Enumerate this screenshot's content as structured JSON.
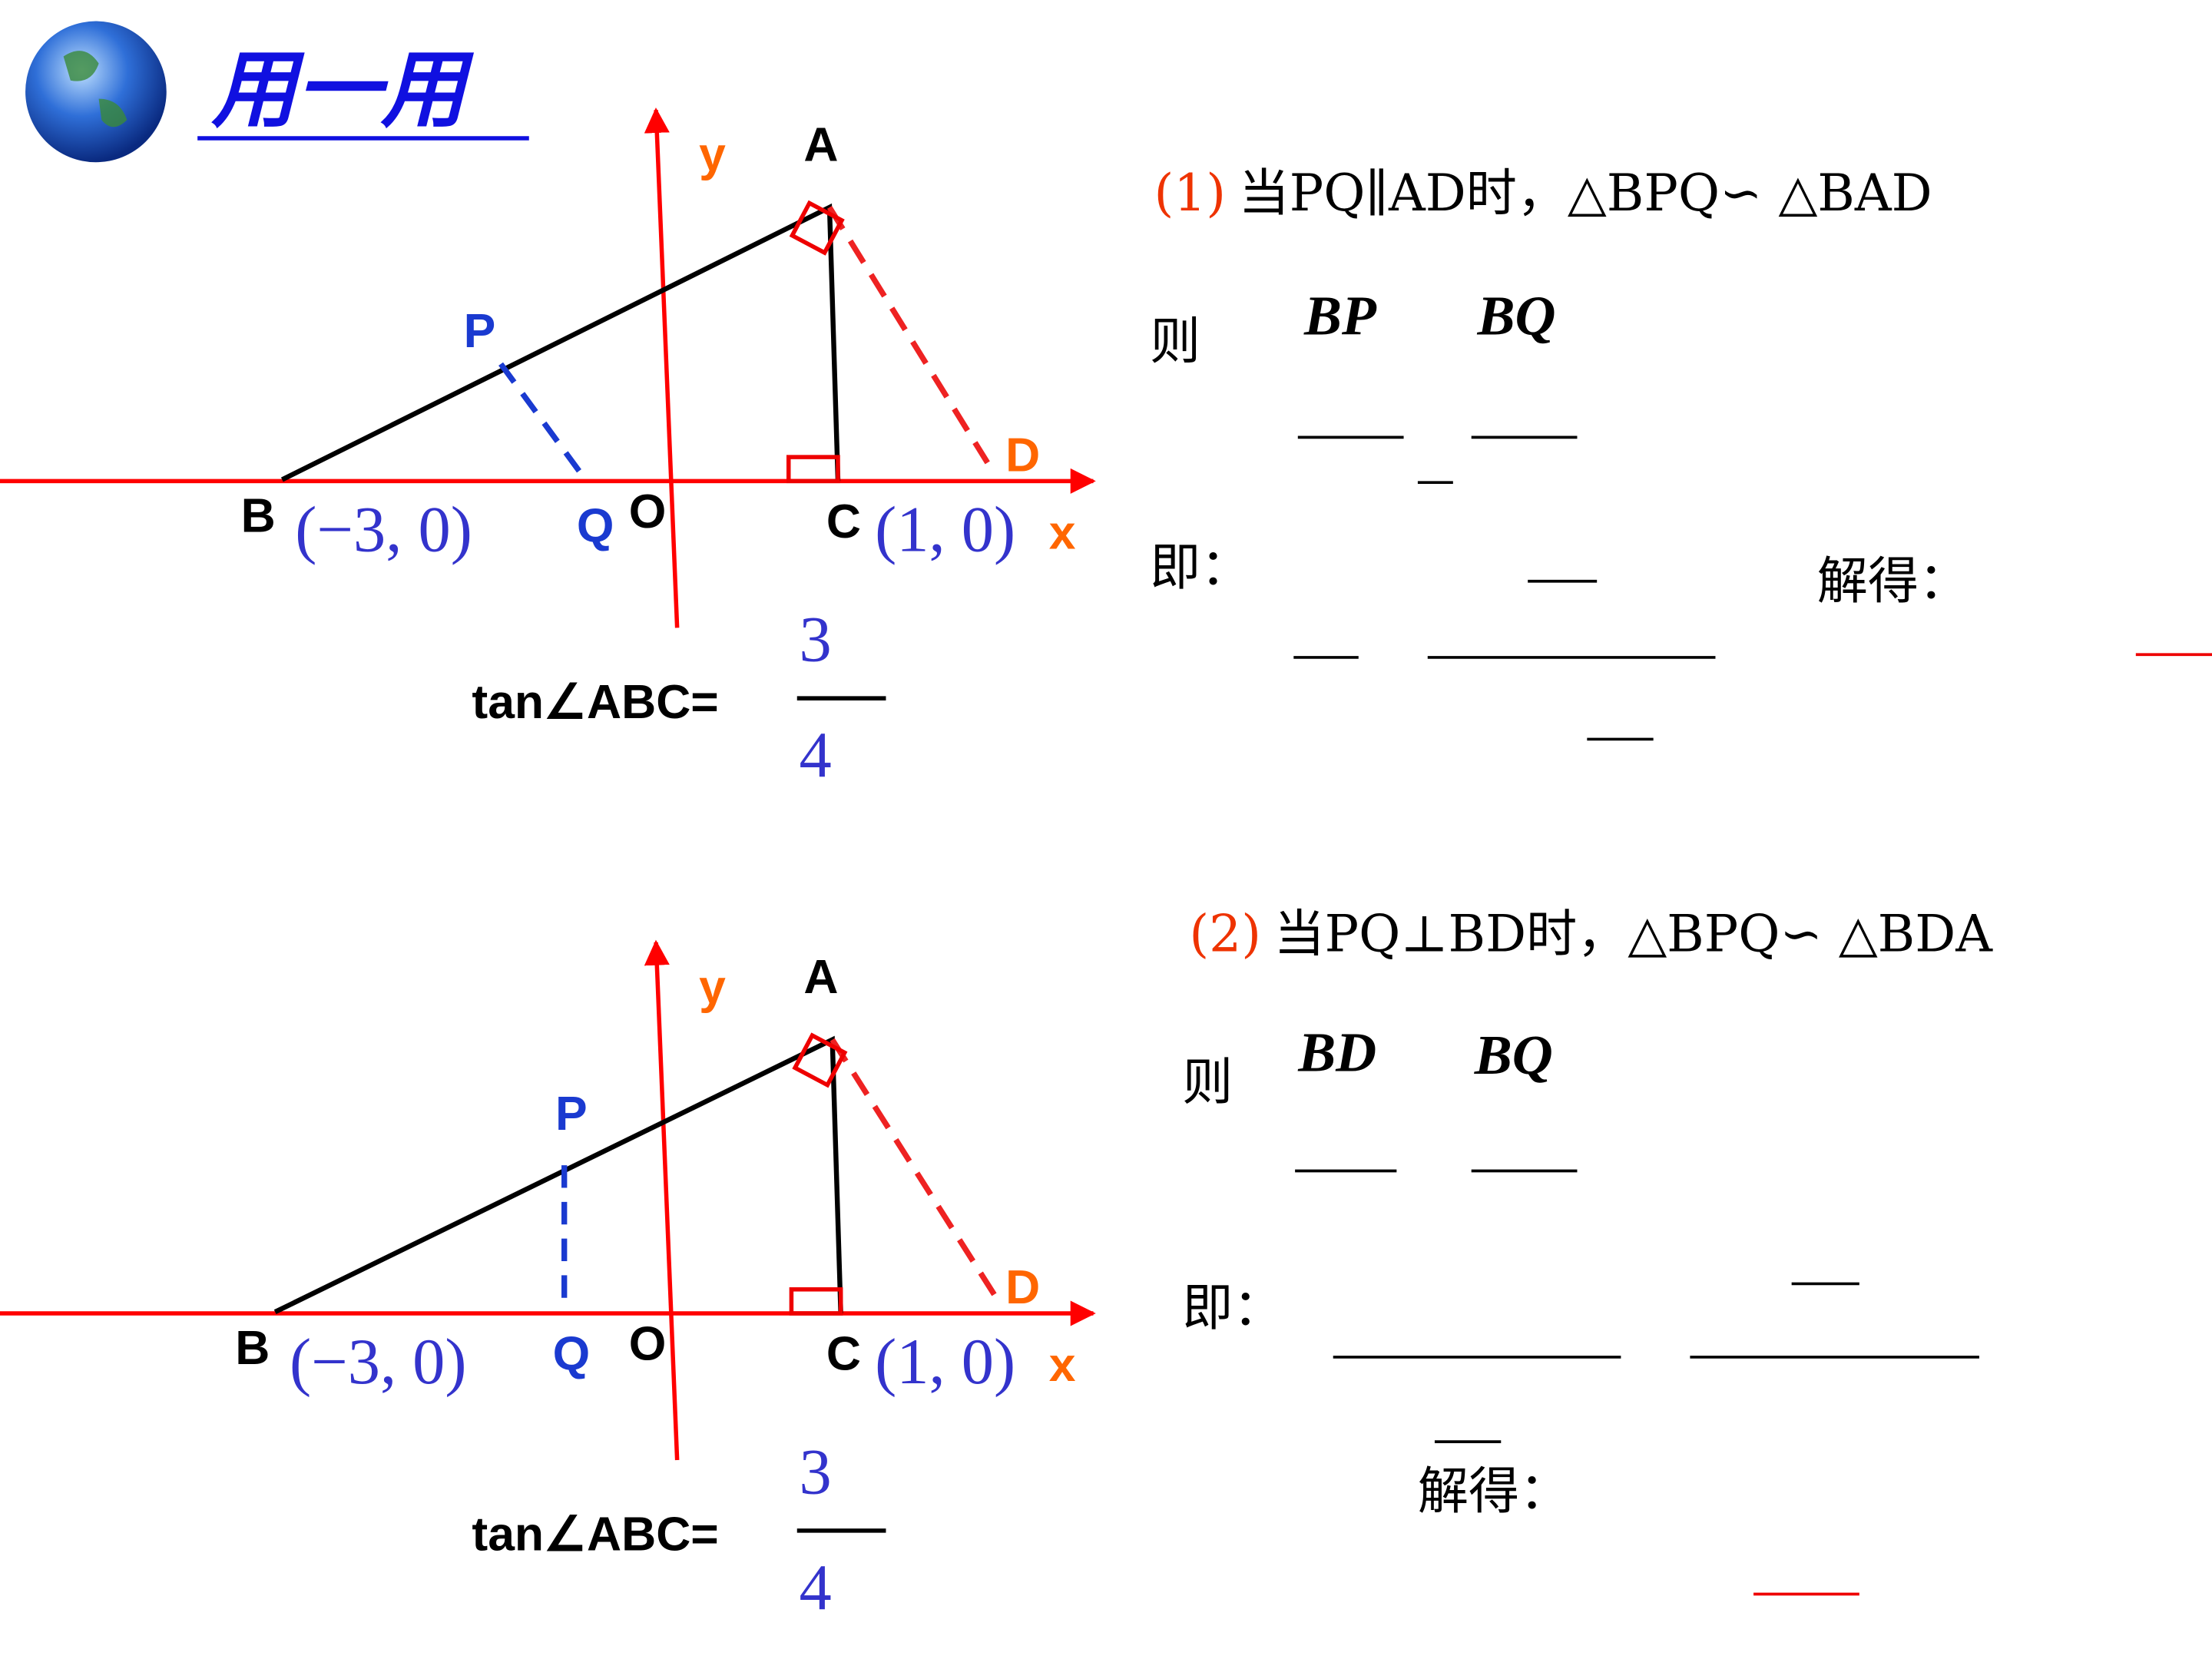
{
  "header": {
    "title": "用一用"
  },
  "figures": [
    {
      "y": "y",
      "A": "A",
      "P": "P",
      "B": "B",
      "B_coord": "(−3, 0)",
      "Q": "Q",
      "O": "O",
      "C": "C",
      "C_coord": "(1, 0)",
      "x": "x",
      "D": "D",
      "tan_label": "tan∠ABC=",
      "numerator": "3",
      "denominator": "4"
    },
    {
      "y": "y",
      "A": "A",
      "P": "P",
      "B": "B",
      "B_coord": "(−3, 0)",
      "Q": "Q",
      "O": "O",
      "C": "C",
      "C_coord": "(1, 0)",
      "x": "x",
      "D": "D",
      "tan_label": "tan∠ABC=",
      "numerator": "3",
      "denominator": "4"
    }
  ],
  "parts": [
    {
      "number": "(1)",
      "statement": "当PQ∥AD时，△BPQ∽ △BAD",
      "then": "则",
      "ratio_left": "BP",
      "ratio_right": "BQ",
      "that_is": "即：",
      "solved": "解得："
    },
    {
      "number": "(2)",
      "statement": "当PQ⊥BD时，△BPQ∽ △BDA",
      "then": "则",
      "ratio_left": "BD",
      "ratio_right": "BQ",
      "that_is": "即：",
      "solved": "解得："
    }
  ]
}
